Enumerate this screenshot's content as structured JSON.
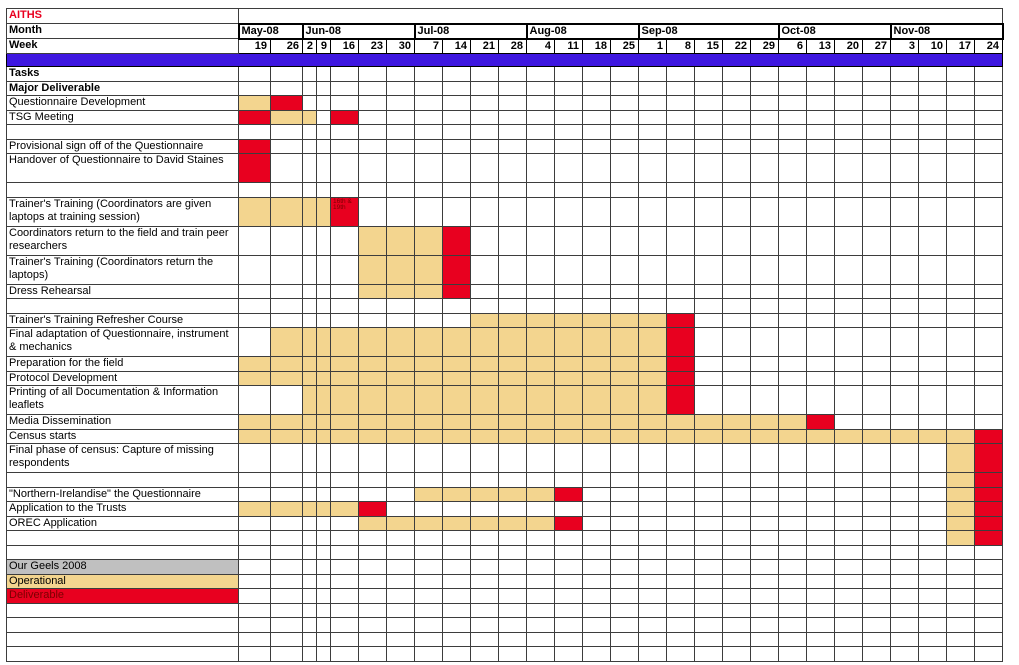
{
  "title": "AITHS",
  "colors": {
    "operational": "#F3D58F",
    "deliverable": "#E8001F",
    "header_bar": "#3E17E0",
    "legend_gray": "#C0C0C0",
    "title_red": "#E8001F",
    "note_text": "#7B0000"
  },
  "header": {
    "month_label": "Month",
    "week_label": "Week"
  },
  "chart_data": {
    "type": "table",
    "subtype": "gantt",
    "title": "AITHS",
    "legend": [
      "Our Geels 2008",
      "Operational",
      "Deliverable"
    ],
    "months": [
      {
        "label": "May-08",
        "span": 2
      },
      {
        "label": "Jun-08",
        "span": 5
      },
      {
        "label": "Jul-08",
        "span": 4
      },
      {
        "label": "Aug-08",
        "span": 4
      },
      {
        "label": "Sep-08",
        "span": 5
      },
      {
        "label": "Oct-08",
        "span": 4
      },
      {
        "label": "Nov-08",
        "span": 4
      }
    ],
    "weeks": [
      "19",
      "26",
      "2",
      "9",
      "16",
      "23",
      "30",
      "7",
      "14",
      "21",
      "28",
      "4",
      "11",
      "18",
      "25",
      "1",
      "8",
      "15",
      "22",
      "29",
      "6",
      "13",
      "20",
      "27",
      "3",
      "10",
      "17",
      "24"
    ],
    "narrow_week_indices": [
      2,
      3
    ],
    "cell_types": {
      "op": "Operational",
      "del": "Deliverable"
    },
    "rows": [
      {
        "label": "Tasks",
        "bold": true,
        "h": 1,
        "cells": []
      },
      {
        "label": "Major Deliverable",
        "bold": true,
        "h": 1,
        "cells": []
      },
      {
        "label": "Questionnaire Development",
        "h": 1,
        "cells": [
          {
            "from": 0,
            "to": 0,
            "t": "op"
          },
          {
            "from": 1,
            "to": 1,
            "t": "del"
          }
        ]
      },
      {
        "label": "TSG Meeting",
        "h": 1,
        "cells": [
          {
            "from": 0,
            "to": 0,
            "t": "del"
          },
          {
            "from": 1,
            "to": 2,
            "t": "op"
          },
          {
            "from": 4,
            "to": 4,
            "t": "del"
          }
        ]
      },
      {
        "label": "",
        "h": 1,
        "cells": []
      },
      {
        "label": "Provisional sign off of the Questionnaire",
        "h": 1,
        "cells": [
          {
            "from": 0,
            "to": 0,
            "t": "del"
          }
        ]
      },
      {
        "label": "Handover of Questionnaire to David Staines",
        "h": 2,
        "cells": [
          {
            "from": 0,
            "to": 0,
            "t": "del"
          }
        ]
      },
      {
        "label": "",
        "h": 1,
        "cells": []
      },
      {
        "label": "Trainer's Training (Coordinators are given laptops at training session)",
        "h": 2,
        "cells": [
          {
            "from": 0,
            "to": 3,
            "t": "op"
          },
          {
            "from": 4,
            "to": 4,
            "t": "del",
            "note": "16th & 19th"
          }
        ]
      },
      {
        "label": "Coordinators return to the field and train peer researchers",
        "h": 2,
        "cells": [
          {
            "from": 5,
            "to": 7,
            "t": "op"
          },
          {
            "from": 8,
            "to": 8,
            "t": "del"
          }
        ]
      },
      {
        "label": "Trainer's Training (Coordinators return the laptops)",
        "h": 2,
        "cells": [
          {
            "from": 5,
            "to": 7,
            "t": "op"
          },
          {
            "from": 8,
            "to": 8,
            "t": "del"
          }
        ]
      },
      {
        "label": "Dress Rehearsal",
        "h": 1,
        "cells": [
          {
            "from": 5,
            "to": 7,
            "t": "op"
          },
          {
            "from": 8,
            "to": 8,
            "t": "del"
          }
        ]
      },
      {
        "label": "",
        "h": 1,
        "cells": []
      },
      {
        "label": "Trainer's Training Refresher Course",
        "h": 1,
        "cells": [
          {
            "from": 9,
            "to": 15,
            "t": "op"
          },
          {
            "from": 16,
            "to": 16,
            "t": "del"
          }
        ]
      },
      {
        "label": "Final adaptation of Questionnaire, instrument & mechanics",
        "h": 2,
        "cells": [
          {
            "from": 1,
            "to": 15,
            "t": "op"
          },
          {
            "from": 16,
            "to": 16,
            "t": "del"
          }
        ]
      },
      {
        "label": "Preparation for the field",
        "h": 1,
        "cells": [
          {
            "from": 0,
            "to": 15,
            "t": "op"
          },
          {
            "from": 16,
            "to": 16,
            "t": "del"
          }
        ]
      },
      {
        "label": "Protocol Development",
        "h": 1,
        "cells": [
          {
            "from": 0,
            "to": 15,
            "t": "op"
          },
          {
            "from": 16,
            "to": 16,
            "t": "del"
          }
        ]
      },
      {
        "label": "Printing of all Documentation & Information leaflets",
        "h": 2,
        "cells": [
          {
            "from": 2,
            "to": 15,
            "t": "op"
          },
          {
            "from": 16,
            "to": 16,
            "t": "del"
          }
        ]
      },
      {
        "label": "Media Dissemination",
        "h": 1,
        "cells": [
          {
            "from": 0,
            "to": 20,
            "t": "op"
          },
          {
            "from": 21,
            "to": 21,
            "t": "del"
          }
        ]
      },
      {
        "label": "Census starts",
        "h": 1,
        "cells": [
          {
            "from": 0,
            "to": 26,
            "t": "op"
          },
          {
            "from": 27,
            "to": 27,
            "t": "del"
          }
        ]
      },
      {
        "label": "Final phase of census: Capture of missing respondents",
        "h": 2,
        "cells": [
          {
            "from": 26,
            "to": 26,
            "t": "op"
          },
          {
            "from": 27,
            "to": 27,
            "t": "del"
          }
        ]
      },
      {
        "label": "",
        "h": 1,
        "cells": [
          {
            "from": 26,
            "to": 26,
            "t": "op"
          },
          {
            "from": 27,
            "to": 27,
            "t": "del"
          }
        ]
      },
      {
        "label": "\"Northern-Irelandise\" the Questionnaire",
        "h": 1,
        "cells": [
          {
            "from": 7,
            "to": 11,
            "t": "op"
          },
          {
            "from": 12,
            "to": 12,
            "t": "del"
          },
          {
            "from": 26,
            "to": 26,
            "t": "op"
          },
          {
            "from": 27,
            "to": 27,
            "t": "del"
          }
        ]
      },
      {
        "label": "Application to the Trusts",
        "h": 1,
        "cells": [
          {
            "from": 0,
            "to": 4,
            "t": "op"
          },
          {
            "from": 5,
            "to": 5,
            "t": "del"
          },
          {
            "from": 26,
            "to": 26,
            "t": "op"
          },
          {
            "from": 27,
            "to": 27,
            "t": "del"
          }
        ]
      },
      {
        "label": "OREC Application",
        "h": 1,
        "cells": [
          {
            "from": 5,
            "to": 11,
            "t": "op"
          },
          {
            "from": 12,
            "to": 12,
            "t": "del"
          },
          {
            "from": 26,
            "to": 26,
            "t": "op"
          },
          {
            "from": 27,
            "to": 27,
            "t": "del"
          }
        ]
      },
      {
        "label": "",
        "h": 1,
        "cells": [
          {
            "from": 26,
            "to": 26,
            "t": "op"
          },
          {
            "from": 27,
            "to": 27,
            "t": "del"
          }
        ]
      },
      {
        "label": "",
        "h": 1,
        "cells": []
      },
      {
        "label": "Our Geels 2008",
        "h": 1,
        "label_bg": "gray",
        "cells": []
      },
      {
        "label": "Operational",
        "h": 1,
        "label_bg": "op",
        "cells": []
      },
      {
        "label": "Deliverable",
        "h": 1,
        "label_bg": "del",
        "label_fg": "#7B0000",
        "cells": []
      },
      {
        "label": "",
        "h": 1,
        "cells": []
      },
      {
        "label": "",
        "h": 1,
        "cells": []
      },
      {
        "label": "",
        "h": 1,
        "cells": []
      },
      {
        "label": "",
        "h": 1,
        "cells": []
      }
    ]
  }
}
